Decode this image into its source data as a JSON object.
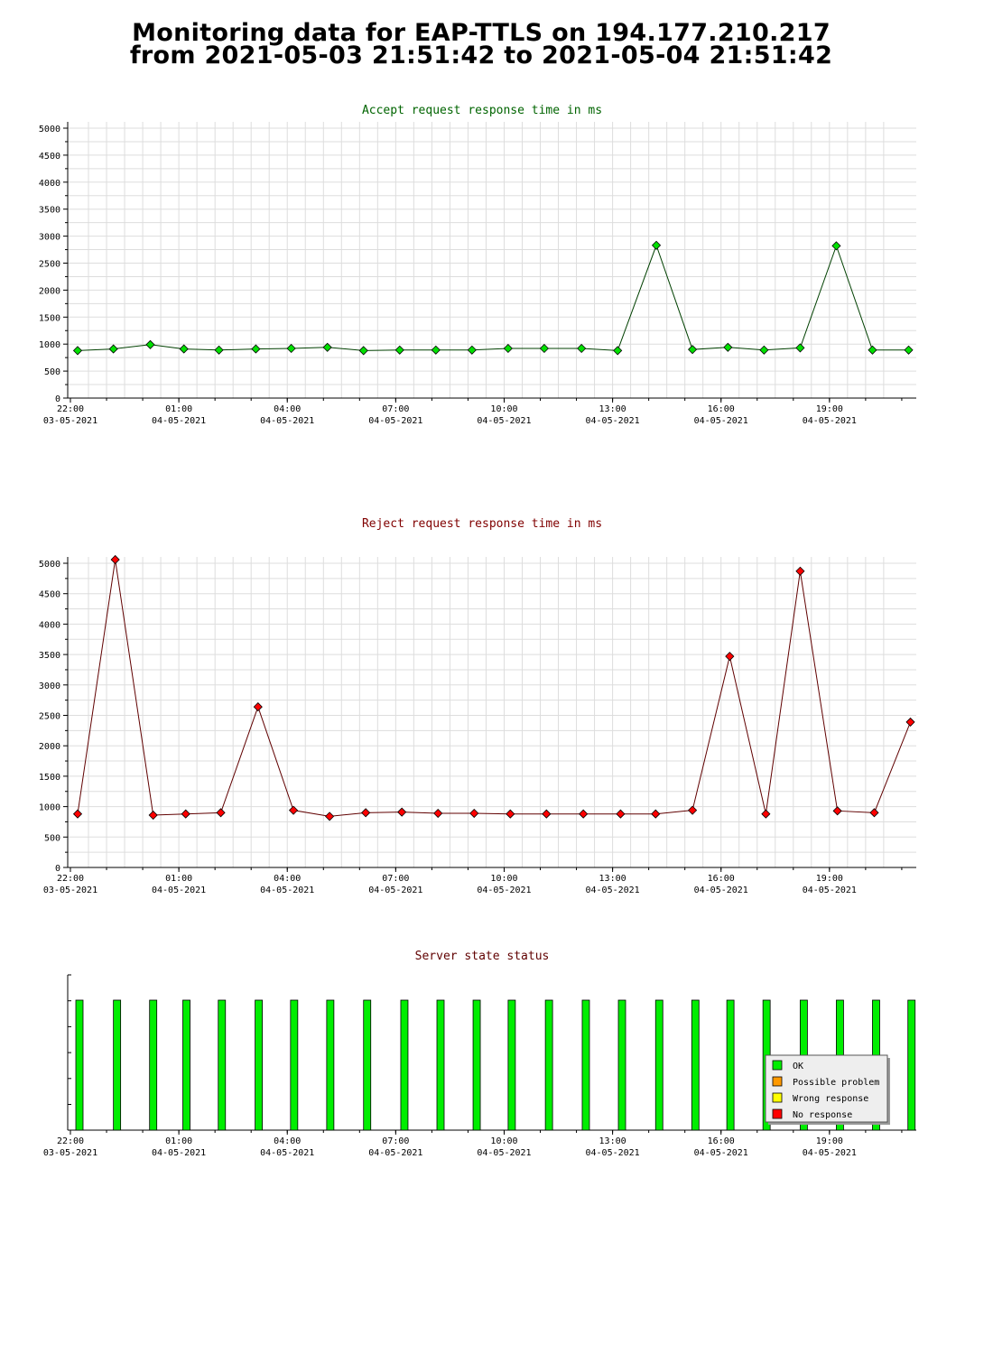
{
  "page": {
    "title_line1": "Monitoring data for EAP-TTLS on 194.177.210.217",
    "title_line2": "from 2021-05-03 21:51:42 to 2021-05-04 21:51:42"
  },
  "colors": {
    "accept_line": "#004000",
    "accept_marker": "#00e000",
    "reject_line": "#600000",
    "reject_marker": "#ff0000",
    "accept_title": "#006400",
    "reject_title": "#800000",
    "status_title": "#600000",
    "grid": "#dddddd",
    "ok": "#00ee00",
    "possible_problem": "#ff9900",
    "wrong_response": "#ffff00",
    "no_response": "#ff0000"
  },
  "x_axis": {
    "ticks": [
      {
        "t": 0,
        "label1": "22:00",
        "label2": "03-05-2021"
      },
      {
        "t": 3,
        "label1": "01:00",
        "label2": "04-05-2021"
      },
      {
        "t": 6,
        "label1": "04:00",
        "label2": "04-05-2021"
      },
      {
        "t": 9,
        "label1": "07:00",
        "label2": "04-05-2021"
      },
      {
        "t": 12,
        "label1": "10:00",
        "label2": "04-05-2021"
      },
      {
        "t": 15,
        "label1": "13:00",
        "label2": "04-05-2021"
      },
      {
        "t": 18,
        "label1": "16:00",
        "label2": "04-05-2021"
      },
      {
        "t": 21,
        "label1": "19:00",
        "label2": "04-05-2021"
      }
    ]
  },
  "chart_data": [
    {
      "type": "line",
      "title": "Accept request response time in ms",
      "xlabel": "",
      "ylabel": "",
      "ylim": [
        0,
        5000
      ],
      "yticks": [
        0,
        500,
        1000,
        1500,
        2000,
        2500,
        3000,
        3500,
        4000,
        4500,
        5000
      ],
      "grid": true,
      "x": [
        0.05,
        1.04,
        2.06,
        2.99,
        3.96,
        4.98,
        5.96,
        6.96,
        7.96,
        8.96,
        9.96,
        10.96,
        11.96,
        12.96,
        13.99,
        14.99,
        16.06,
        17.06,
        18.04,
        19.04,
        20.04,
        21.04,
        22.04,
        23.04
      ],
      "series": [
        {
          "values": [
            880,
            910,
            990,
            910,
            890,
            910,
            920,
            940,
            880,
            890,
            890,
            890,
            920,
            920,
            920,
            880,
            2830,
            900,
            940,
            890,
            930,
            2820,
            890,
            890
          ]
        }
      ]
    },
    {
      "type": "line",
      "title": "Reject request response time in ms",
      "xlabel": "",
      "ylabel": "",
      "ylim": [
        0,
        5000
      ],
      "yticks": [
        0,
        500,
        1000,
        1500,
        2000,
        2500,
        3000,
        3500,
        4000,
        4500,
        5000
      ],
      "grid": true,
      "x": [
        0.05,
        1.09,
        2.14,
        3.04,
        4.01,
        5.04,
        6.02,
        7.02,
        8.02,
        9.02,
        10.02,
        11.02,
        12.02,
        13.02,
        14.04,
        15.07,
        16.04,
        17.06,
        18.09,
        19.09,
        20.04,
        21.07,
        22.09,
        23.09
      ],
      "series": [
        {
          "values": [
            880,
            5060,
            860,
            880,
            900,
            2640,
            940,
            840,
            900,
            910,
            890,
            890,
            880,
            880,
            880,
            880,
            880,
            940,
            3470,
            880,
            4870,
            930,
            900,
            2390
          ]
        }
      ]
    },
    {
      "type": "bar",
      "title": "Server state status",
      "categories": [
        0.1,
        1.14,
        2.14,
        3.06,
        4.04,
        5.06,
        6.04,
        7.04,
        8.06,
        9.09,
        10.09,
        11.09,
        12.06,
        13.09,
        14.11,
        15.11,
        16.14,
        17.14,
        18.11,
        19.11,
        20.14,
        21.14,
        22.14,
        23.12
      ],
      "series": [
        {
          "name": "OK",
          "values": [
            1,
            1,
            1,
            1,
            1,
            1,
            1,
            1,
            1,
            1,
            1,
            1,
            1,
            1,
            1,
            1,
            1,
            1,
            1,
            1,
            1,
            1,
            1,
            1
          ]
        }
      ],
      "legend": [
        "OK",
        "Possible problem",
        "Wrong response",
        "No response"
      ],
      "legend_position": "bottom-right"
    }
  ]
}
